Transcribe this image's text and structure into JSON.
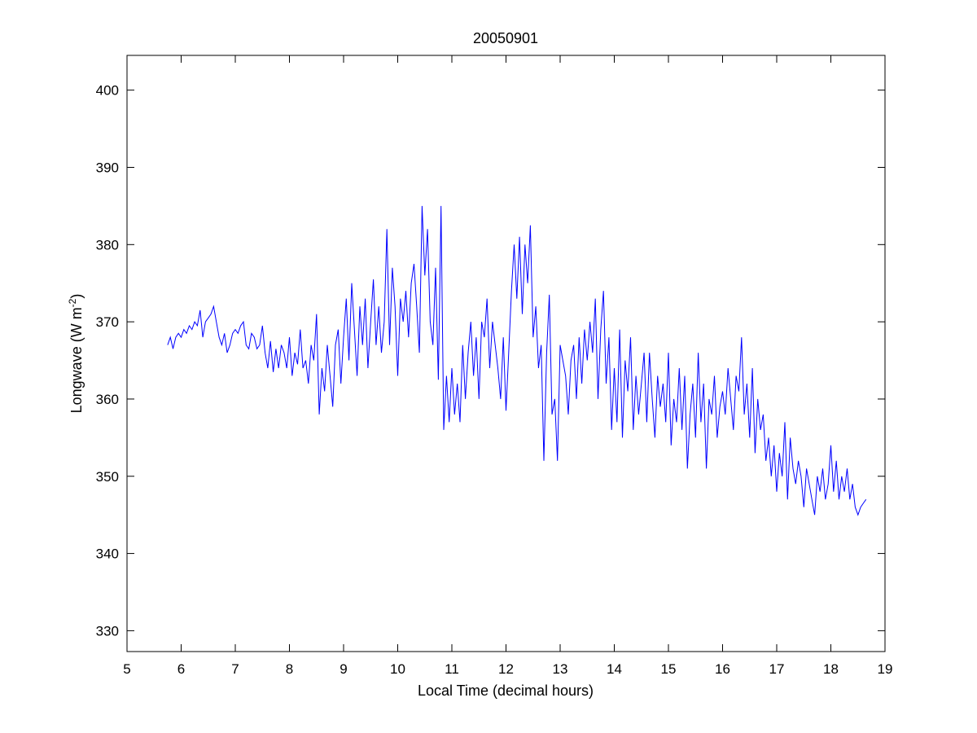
{
  "chart_data": {
    "type": "line",
    "title": "20050901",
    "xlabel": "Local Time (decimal hours)",
    "ylabel": "Longwave (W m",
    "ylabel_sup": "-2",
    "ylabel_end": ")",
    "xlim": [
      5,
      19
    ],
    "ylim": [
      327.3,
      404.5
    ],
    "xticks": [
      "5",
      "6",
      "7",
      "8",
      "9",
      "10",
      "11",
      "12",
      "13",
      "14",
      "15",
      "16",
      "17",
      "18",
      "19"
    ],
    "yticks": [
      "330",
      "340",
      "350",
      "360",
      "370",
      "380",
      "390",
      "400"
    ],
    "grid": false,
    "series": [
      {
        "name": "Longwave",
        "color": "#0000ff",
        "x_start": 5.75,
        "x_step": 0.05,
        "values": [
          367,
          368,
          366.5,
          368,
          368.5,
          368,
          369,
          368.5,
          369.5,
          369,
          370,
          369.5,
          371.5,
          368,
          370,
          370.5,
          371,
          372,
          370,
          368,
          367,
          368.5,
          366,
          367,
          368.5,
          369,
          368.5,
          369.5,
          370,
          367,
          366.5,
          368.5,
          368,
          366.5,
          367,
          369.5,
          366,
          364,
          367.5,
          363.5,
          366.5,
          364,
          367,
          366,
          364,
          368,
          363,
          366,
          364.5,
          369,
          364,
          365,
          362,
          367,
          365,
          371,
          358,
          364,
          361,
          367,
          363,
          359,
          367,
          369,
          362,
          368,
          373,
          365,
          375,
          369,
          363,
          372,
          367,
          373,
          364,
          370,
          375.5,
          367,
          372,
          366,
          370,
          382,
          367,
          377,
          372,
          363,
          373,
          370,
          374,
          368,
          375,
          377.5,
          372,
          366,
          385,
          376,
          382,
          370,
          367,
          377,
          362.5,
          385,
          356,
          363,
          357,
          364,
          358,
          362,
          357,
          367,
          360,
          366,
          370,
          363,
          368,
          360,
          370,
          368,
          373,
          364,
          370,
          367,
          364,
          360,
          368,
          358.5,
          366,
          374,
          380,
          373,
          381,
          371,
          380,
          375,
          382.5,
          368,
          372,
          364,
          367,
          352,
          366,
          373.5,
          358,
          360,
          352,
          367,
          365,
          363,
          358,
          365,
          367,
          360,
          368,
          362,
          369,
          365,
          370,
          366,
          373,
          360,
          369,
          374,
          362,
          368,
          356,
          364,
          357,
          369,
          355,
          365,
          361,
          368,
          356,
          363,
          358,
          362,
          366,
          357,
          366,
          360,
          355,
          363,
          359,
          362,
          357,
          366,
          354,
          360,
          357,
          364,
          356,
          363,
          351,
          358,
          362,
          355,
          366,
          357,
          362,
          351,
          360,
          358,
          363,
          355,
          359,
          361,
          358,
          364,
          360,
          356,
          363,
          361,
          368,
          358,
          362,
          355,
          364,
          353,
          360,
          356,
          358,
          352,
          355,
          350,
          354,
          348,
          353,
          350,
          357,
          347,
          355,
          351,
          349,
          352,
          350,
          346,
          351,
          349,
          347,
          345,
          350,
          348,
          351,
          347,
          349,
          354,
          348,
          352,
          347,
          350,
          348,
          351,
          347,
          349,
          346,
          345,
          346,
          346.5,
          347
        ]
      }
    ]
  }
}
